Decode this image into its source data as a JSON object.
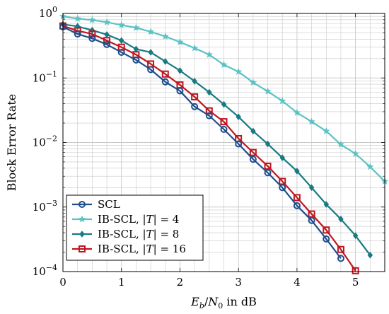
{
  "chart_data": {
    "type": "line",
    "title": "",
    "xlabel": "E_b/N_0 in dB",
    "ylabel": "Block Error Rate",
    "xlim": [
      0,
      5.5
    ],
    "ylim": [
      0.0001,
      1
    ],
    "yscale": "log",
    "grid": true,
    "legend_position": "bottom-left",
    "x_ticks": [
      "0",
      "1",
      "2",
      "3",
      "4",
      "5"
    ],
    "y_ticks": [
      {
        "mantissa": "10",
        "exponent": "0"
      },
      {
        "mantissa": "10",
        "exponent": "−1"
      },
      {
        "mantissa": "10",
        "exponent": "−2"
      },
      {
        "mantissa": "10",
        "exponent": "−3"
      },
      {
        "mantissa": "10",
        "exponent": "−4"
      }
    ],
    "series": [
      {
        "name": "SCL",
        "legend_prefix": "SCL",
        "legend_set": "",
        "legend_suffix": "",
        "color": "#1f4e8c",
        "marker": "circle",
        "x": [
          0,
          0.25,
          0.5,
          0.75,
          1,
          1.25,
          1.5,
          1.75,
          2,
          2.25,
          2.5,
          2.75,
          3,
          3.25,
          3.5,
          3.75,
          4,
          4.25,
          4.5,
          4.75
        ],
        "y": [
          0.62,
          0.48,
          0.41,
          0.33,
          0.25,
          0.19,
          0.135,
          0.087,
          0.063,
          0.036,
          0.026,
          0.016,
          0.0095,
          0.0055,
          0.0034,
          0.002,
          0.00105,
          0.00062,
          0.00032,
          0.00016
        ]
      },
      {
        "name": "IB-SCL, |T| = 4",
        "legend_prefix": "IB-SCL, |",
        "legend_set": "T",
        "legend_suffix": "| = 4",
        "color": "#5bc2c4",
        "marker": "star",
        "x": [
          0,
          0.25,
          0.5,
          0.75,
          1,
          1.25,
          1.5,
          1.75,
          2,
          2.25,
          2.5,
          2.75,
          3,
          3.25,
          3.5,
          3.75,
          4,
          4.25,
          4.5,
          4.75,
          5,
          5.25,
          5.5
        ],
        "y": [
          0.9,
          0.83,
          0.79,
          0.73,
          0.66,
          0.6,
          0.52,
          0.44,
          0.36,
          0.29,
          0.23,
          0.16,
          0.125,
          0.085,
          0.062,
          0.044,
          0.029,
          0.021,
          0.015,
          0.0093,
          0.0067,
          0.0042,
          0.0025
        ]
      },
      {
        "name": "IB-SCL, |T| = 8",
        "legend_prefix": "IB-SCL, |",
        "legend_set": "T",
        "legend_suffix": "| = 8",
        "color": "#187a82",
        "marker": "diamond",
        "x": [
          0,
          0.25,
          0.5,
          0.75,
          1,
          1.25,
          1.5,
          1.75,
          2,
          2.25,
          2.5,
          2.75,
          3,
          3.25,
          3.5,
          3.75,
          4,
          4.25,
          4.5,
          4.75,
          5,
          5.25
        ],
        "y": [
          0.68,
          0.63,
          0.55,
          0.47,
          0.38,
          0.28,
          0.25,
          0.18,
          0.13,
          0.089,
          0.06,
          0.039,
          0.025,
          0.015,
          0.0095,
          0.0058,
          0.0036,
          0.002,
          0.0011,
          0.00065,
          0.00036,
          0.00018
        ]
      },
      {
        "name": "IB-SCL, |T| = 16",
        "legend_prefix": "IB-SCL, |",
        "legend_set": "T",
        "legend_suffix": "| = 16",
        "color": "#c0161f",
        "marker": "square",
        "x": [
          0,
          0.25,
          0.5,
          0.75,
          1,
          1.25,
          1.5,
          1.75,
          2,
          2.25,
          2.5,
          2.75,
          3,
          3.25,
          3.5,
          3.75,
          4,
          4.25,
          4.5,
          4.75,
          5
        ],
        "y": [
          0.64,
          0.54,
          0.48,
          0.38,
          0.3,
          0.23,
          0.165,
          0.115,
          0.078,
          0.051,
          0.031,
          0.021,
          0.0115,
          0.007,
          0.0043,
          0.0025,
          0.0014,
          0.00078,
          0.00044,
          0.00022,
          0.000103
        ]
      }
    ]
  }
}
